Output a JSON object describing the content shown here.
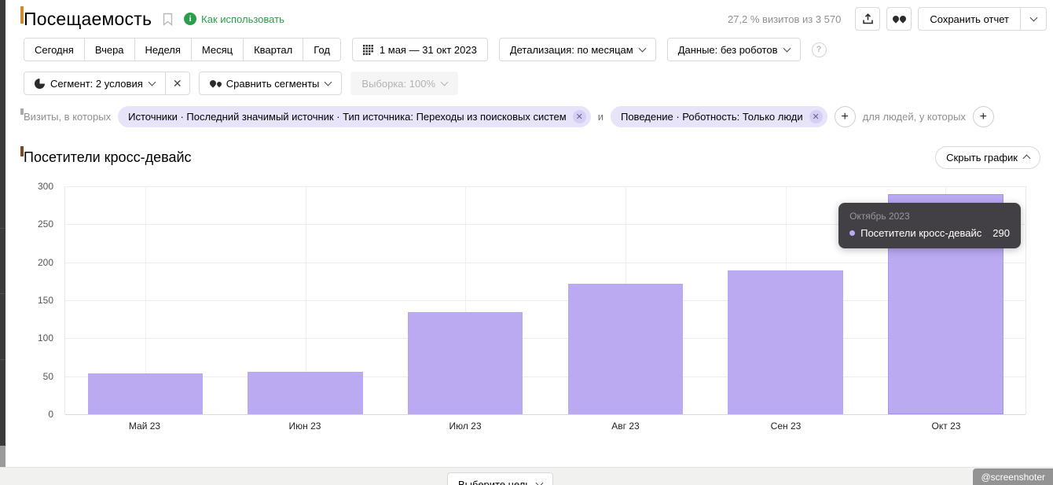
{
  "page": {
    "title": "Посещаемость",
    "how_to_use_label": "Как использовать",
    "sample_share_text": "27,2 % визитов из 3 570",
    "save_report_label": "Сохранить отчет"
  },
  "toolbar": {
    "periods": [
      "Сегодня",
      "Вчера",
      "Неделя",
      "Месяц",
      "Квартал",
      "Год"
    ],
    "date_range_label": "1 мая — 31 окт 2023",
    "detail_label": "Детализация: по месяцам",
    "data_label": "Данные: без роботов"
  },
  "segments": {
    "segment_label": "Сегмент: 2 условия",
    "compare_label": "Сравнить сегменты",
    "sampling_label": "Выборка: 100%"
  },
  "filters": {
    "visits_prefix": "Визиты, в которых",
    "and_connector": "и",
    "people_prefix": "для людей, у которых",
    "chips": [
      "Источники · Последний значимый источник · Тип источника: Переходы из поисковых систем",
      "Поведение · Роботность: Только люди"
    ]
  },
  "report": {
    "chart_title": "Посетители кросс-девайс",
    "hide_chart_label": "Скрыть график"
  },
  "tooltip": {
    "date": "Октябрь 2023",
    "series": "Посетители кросс-девайс",
    "value": "290"
  },
  "footer": {
    "goal_label": "Выберите цель",
    "watermark": "@screenshoter"
  },
  "chart_data": {
    "type": "bar",
    "title": "Посетители кросс-девайс",
    "series_name": "Посетители кросс-девайс",
    "categories": [
      "Май 23",
      "Июн 23",
      "Июл 23",
      "Авг 23",
      "Сен 23",
      "Окт 23"
    ],
    "values": [
      54,
      56,
      135,
      172,
      189,
      290
    ],
    "ylim": [
      0,
      300
    ],
    "yticks": [
      0,
      50,
      100,
      150,
      200,
      250,
      300
    ],
    "xlabel": "",
    "ylabel": "",
    "grid": true,
    "legend_position": "none",
    "bar_color": "#bba9f2",
    "hovered_category": "Окт 23",
    "hovered_tooltip": {
      "date": "Октябрь 2023",
      "value": 290
    }
  },
  "colors": {
    "accent_purple": "#bba9f2",
    "link_green": "#2b9e4a",
    "tooltip_bg": "#434045",
    "chip_bg": "#e7e3f9",
    "sidebar_strip": "#3a3a3a"
  }
}
